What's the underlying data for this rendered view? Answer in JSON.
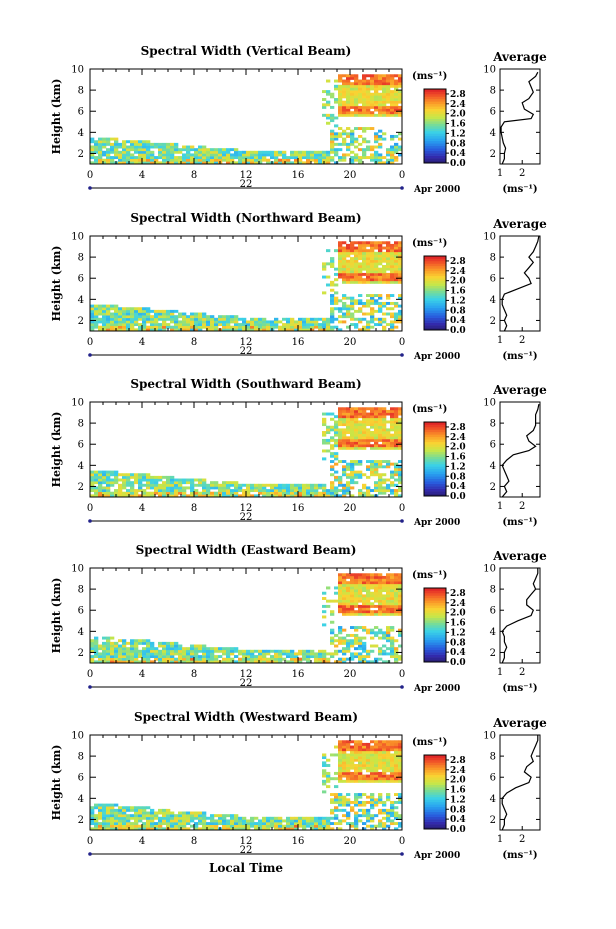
{
  "chart_data": [
    {
      "type": "heatmap",
      "title": "Spectral Width (Vertical Beam)",
      "ylabel": "Height (km)",
      "xlabel": "",
      "x_ticks": [
        "0",
        "4",
        "8",
        "12",
        "16",
        "20",
        "0"
      ],
      "y_ticks": [
        "2",
        "4",
        "6",
        "8",
        "10"
      ],
      "xlim": [
        0,
        24
      ],
      "ylim": [
        1,
        10
      ],
      "date_label": "22",
      "month_label": "Apr 2000",
      "colorbar": {
        "unit": "(ms⁻¹)",
        "ticks": [
          "2.8",
          "2.4",
          "2.0",
          "1.6",
          "1.2",
          "0.8",
          "0.4",
          "0.0"
        ],
        "range": [
          0.0,
          3.0
        ]
      },
      "average_profile": {
        "title": "Average",
        "xlabel": "(ms⁻¹)",
        "x_ticks": [
          "1",
          "2"
        ],
        "y_ticks": [
          "2",
          "4",
          "6",
          "8",
          "10"
        ],
        "xlim": [
          1,
          2.8
        ],
        "ylim": [
          1,
          10
        ],
        "points": [
          [
            1.1,
            1.0
          ],
          [
            1.2,
            1.5
          ],
          [
            1.2,
            2.0
          ],
          [
            1.25,
            2.5
          ],
          [
            1.15,
            3.0
          ],
          [
            1.1,
            3.5
          ],
          [
            1.05,
            4.0
          ],
          [
            1.05,
            4.5
          ],
          [
            1.2,
            5.0
          ],
          [
            2.4,
            5.3
          ],
          [
            2.5,
            5.7
          ],
          [
            2.1,
            6.2
          ],
          [
            2.0,
            6.8
          ],
          [
            2.3,
            7.2
          ],
          [
            2.5,
            7.8
          ],
          [
            2.4,
            8.3
          ],
          [
            2.3,
            8.8
          ],
          [
            2.6,
            9.3
          ],
          [
            2.7,
            9.7
          ]
        ]
      }
    },
    {
      "type": "heatmap",
      "title": "Spectral Width (Northward Beam)",
      "ylabel": "Height (km)",
      "xlabel": "",
      "x_ticks": [
        "0",
        "4",
        "8",
        "12",
        "16",
        "20",
        "0"
      ],
      "y_ticks": [
        "2",
        "4",
        "6",
        "8",
        "10"
      ],
      "xlim": [
        0,
        24
      ],
      "ylim": [
        1,
        10
      ],
      "date_label": "22",
      "month_label": "Apr 2000",
      "colorbar": {
        "unit": "(ms⁻¹)",
        "ticks": [
          "2.8",
          "2.4",
          "2.0",
          "1.6",
          "1.2",
          "0.8",
          "0.4",
          "0.0"
        ],
        "range": [
          0.0,
          3.0
        ]
      },
      "average_profile": {
        "title": "Average",
        "xlabel": "(ms⁻¹)",
        "x_ticks": [
          "1",
          "2"
        ],
        "y_ticks": [
          "2",
          "4",
          "6",
          "8",
          "10"
        ],
        "xlim": [
          1,
          2.8
        ],
        "ylim": [
          1,
          10
        ],
        "points": [
          [
            1.2,
            1.0
          ],
          [
            1.3,
            1.5
          ],
          [
            1.2,
            2.0
          ],
          [
            1.3,
            2.5
          ],
          [
            1.2,
            3.0
          ],
          [
            1.1,
            3.5
          ],
          [
            1.1,
            4.0
          ],
          [
            1.2,
            4.5
          ],
          [
            1.8,
            5.0
          ],
          [
            2.4,
            5.5
          ],
          [
            2.3,
            6.0
          ],
          [
            2.1,
            6.5
          ],
          [
            2.3,
            7.0
          ],
          [
            2.5,
            7.5
          ],
          [
            2.3,
            8.0
          ],
          [
            2.5,
            8.5
          ],
          [
            2.6,
            9.0
          ],
          [
            2.7,
            9.5
          ],
          [
            2.75,
            10.0
          ]
        ]
      }
    },
    {
      "type": "heatmap",
      "title": "Spectral Width (Southward Beam)",
      "ylabel": "Height (km)",
      "xlabel": "",
      "x_ticks": [
        "0",
        "4",
        "8",
        "12",
        "16",
        "20",
        "0"
      ],
      "y_ticks": [
        "2",
        "4",
        "6",
        "8",
        "10"
      ],
      "xlim": [
        0,
        24
      ],
      "ylim": [
        1,
        10
      ],
      "date_label": "22",
      "month_label": "Apr 2000",
      "colorbar": {
        "unit": "(ms⁻¹)",
        "ticks": [
          "2.8",
          "2.4",
          "2.0",
          "1.6",
          "1.2",
          "0.8",
          "0.4",
          "0.0"
        ],
        "range": [
          0.0,
          3.0
        ]
      },
      "average_profile": {
        "title": "Average",
        "xlabel": "(ms⁻¹)",
        "x_ticks": [
          "1",
          "2"
        ],
        "y_ticks": [
          "2",
          "4",
          "6",
          "8",
          "10"
        ],
        "xlim": [
          1,
          2.8
        ],
        "ylim": [
          1,
          10
        ],
        "points": [
          [
            1.1,
            1.0
          ],
          [
            1.3,
            1.5
          ],
          [
            1.2,
            2.0
          ],
          [
            1.4,
            2.5
          ],
          [
            1.3,
            3.0
          ],
          [
            1.2,
            3.5
          ],
          [
            1.1,
            4.0
          ],
          [
            1.3,
            4.5
          ],
          [
            1.6,
            5.0
          ],
          [
            2.3,
            5.4
          ],
          [
            2.6,
            5.8
          ],
          [
            2.3,
            6.3
          ],
          [
            2.2,
            6.8
          ],
          [
            2.5,
            7.3
          ],
          [
            2.6,
            7.8
          ],
          [
            2.6,
            8.3
          ],
          [
            2.6,
            8.8
          ],
          [
            2.7,
            9.3
          ],
          [
            2.75,
            9.8
          ]
        ]
      }
    },
    {
      "type": "heatmap",
      "title": "Spectral Width (Eastward Beam)",
      "ylabel": "Height (km)",
      "xlabel": "",
      "x_ticks": [
        "0",
        "4",
        "8",
        "12",
        "16",
        "20",
        "0"
      ],
      "y_ticks": [
        "2",
        "4",
        "6",
        "8",
        "10"
      ],
      "xlim": [
        0,
        24
      ],
      "ylim": [
        1,
        10
      ],
      "date_label": "22",
      "month_label": "Apr 2000",
      "colorbar": {
        "unit": "(ms⁻¹)",
        "ticks": [
          "2.8",
          "2.4",
          "2.0",
          "1.6",
          "1.2",
          "0.8",
          "0.4",
          "0.0"
        ],
        "range": [
          0.0,
          3.0
        ]
      },
      "average_profile": {
        "title": "Average",
        "xlabel": "(ms⁻¹)",
        "x_ticks": [
          "1",
          "2"
        ],
        "y_ticks": [
          "2",
          "4",
          "6",
          "8",
          "10"
        ],
        "xlim": [
          1,
          2.8
        ],
        "ylim": [
          1,
          10
        ],
        "points": [
          [
            1.1,
            1.0
          ],
          [
            1.2,
            1.5
          ],
          [
            1.2,
            2.0
          ],
          [
            1.3,
            2.5
          ],
          [
            1.2,
            3.0
          ],
          [
            1.2,
            3.5
          ],
          [
            1.1,
            4.0
          ],
          [
            1.3,
            4.5
          ],
          [
            1.8,
            5.0
          ],
          [
            2.4,
            5.5
          ],
          [
            2.5,
            6.0
          ],
          [
            2.2,
            6.5
          ],
          [
            2.2,
            7.0
          ],
          [
            2.4,
            7.5
          ],
          [
            2.6,
            8.0
          ],
          [
            2.5,
            8.5
          ],
          [
            2.6,
            9.0
          ],
          [
            2.7,
            9.5
          ],
          [
            2.7,
            10.0
          ]
        ]
      }
    },
    {
      "type": "heatmap",
      "title": "Spectral Width (Westward Beam)",
      "ylabel": "Height (km)",
      "xlabel": "Local Time",
      "x_ticks": [
        "0",
        "4",
        "8",
        "12",
        "16",
        "20",
        "0"
      ],
      "y_ticks": [
        "2",
        "4",
        "6",
        "8",
        "10"
      ],
      "xlim": [
        0,
        24
      ],
      "ylim": [
        1,
        10
      ],
      "date_label": "22",
      "month_label": "Apr 2000",
      "colorbar": {
        "unit": "(ms⁻¹)",
        "ticks": [
          "2.8",
          "2.4",
          "2.0",
          "1.6",
          "1.2",
          "0.8",
          "0.4",
          "0.0"
        ],
        "range": [
          0.0,
          3.0
        ]
      },
      "average_profile": {
        "title": "Average",
        "xlabel": "(ms⁻¹)",
        "x_ticks": [
          "1",
          "2"
        ],
        "y_ticks": [
          "2",
          "4",
          "6",
          "8",
          "10"
        ],
        "xlim": [
          1,
          2.8
        ],
        "ylim": [
          1,
          10
        ],
        "points": [
          [
            1.1,
            1.0
          ],
          [
            1.2,
            1.5
          ],
          [
            1.2,
            2.0
          ],
          [
            1.3,
            2.5
          ],
          [
            1.2,
            3.0
          ],
          [
            1.1,
            3.5
          ],
          [
            1.1,
            4.0
          ],
          [
            1.3,
            4.5
          ],
          [
            1.7,
            5.0
          ],
          [
            2.3,
            5.5
          ],
          [
            2.4,
            6.0
          ],
          [
            2.1,
            6.5
          ],
          [
            2.2,
            7.0
          ],
          [
            2.5,
            7.5
          ],
          [
            2.4,
            8.0
          ],
          [
            2.5,
            8.5
          ],
          [
            2.6,
            9.0
          ],
          [
            2.7,
            9.5
          ],
          [
            2.7,
            10.0
          ]
        ]
      }
    }
  ]
}
